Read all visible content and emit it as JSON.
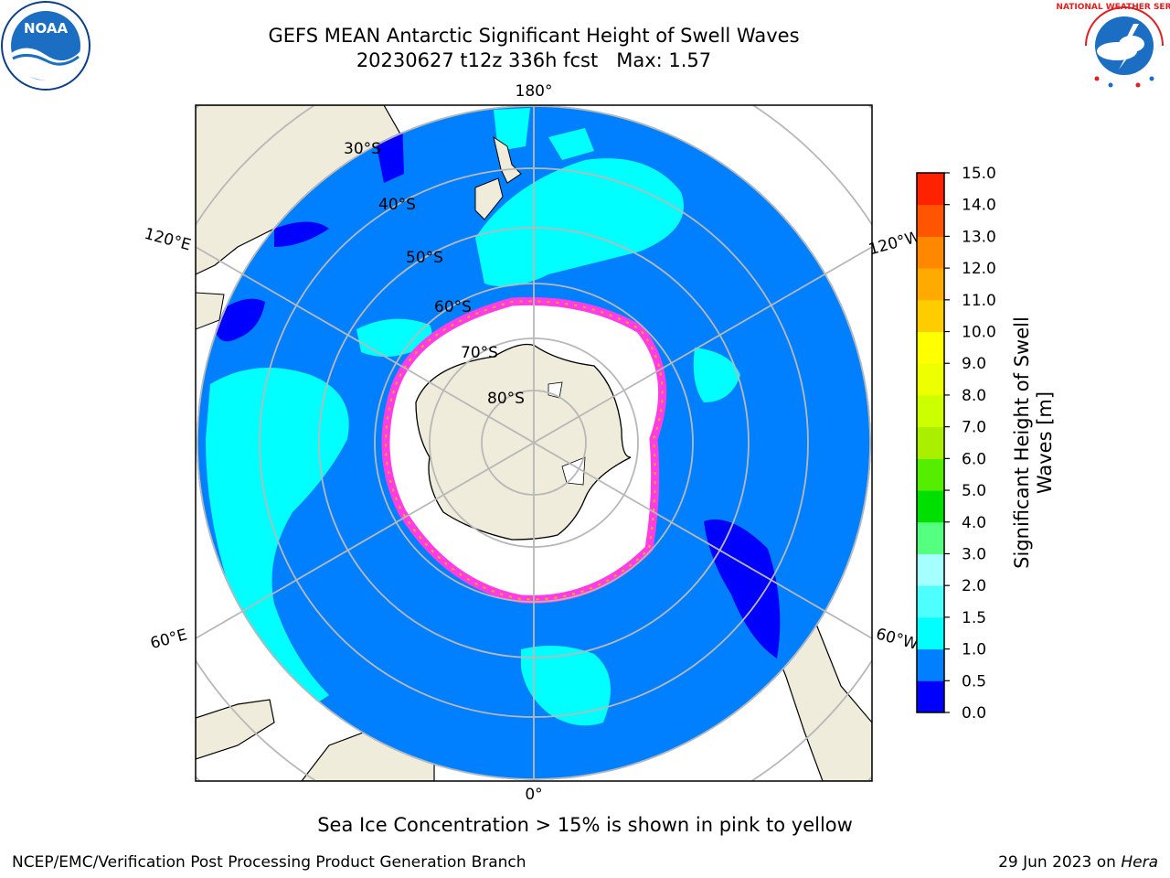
{
  "header": {
    "title_line1": "GEFS MEAN Antarctic Significant Height of Swell Waves",
    "title_line2": "20230627 t12z 336h fcst   Max: 1.57",
    "logo_left_text": "NOAA",
    "logo_right_text": "NATIONAL WEATHER SERVICE"
  },
  "map": {
    "projection": "south-polar-stereographic",
    "longitude_labels": {
      "top": "180°",
      "bottom": "0°",
      "left_upper": "120°E",
      "right_upper": "120°W",
      "left_lower": "60°E",
      "right_lower": "60°W"
    },
    "latitude_labels": [
      "30°S",
      "40°S",
      "50°S",
      "60°S",
      "70°S",
      "80°S"
    ],
    "colors": {
      "land": "#efecdc",
      "ocean_main": "#0080ff",
      "swell_1_15": "#00ffff",
      "swell_0_05": "#0000ff",
      "ice": "#ffffff",
      "ice_edge": "#ff3ce6",
      "grid": "#b8b8b8"
    }
  },
  "colorbar": {
    "label_line1": "Significant Height of Swell",
    "label_line2": "Waves [m]",
    "ticks": [
      "0.0",
      "0.5",
      "1.0",
      "1.5",
      "2.0",
      "3.0",
      "4.0",
      "5.0",
      "6.0",
      "7.0",
      "8.0",
      "9.0",
      "10.0",
      "11.0",
      "12.0",
      "13.0",
      "14.0",
      "15.0"
    ],
    "colors": [
      "#0000ff",
      "#0080ff",
      "#00ffff",
      "#4dffff",
      "#a6ffff",
      "#55ff80",
      "#00e000",
      "#55ee00",
      "#aaee00",
      "#ccff00",
      "#eeff00",
      "#ffff00",
      "#ffcc00",
      "#ffaa00",
      "#ff8800",
      "#ff5500",
      "#ff2200",
      "#ff0000"
    ]
  },
  "footer": {
    "note": "Sea Ice Concentration > 15% is shown in pink to yellow",
    "credit": "NCEP/EMC/Verification Post Processing Product Generation Branch",
    "date": "29 Jun 2023 on ",
    "machine": "Hera"
  }
}
